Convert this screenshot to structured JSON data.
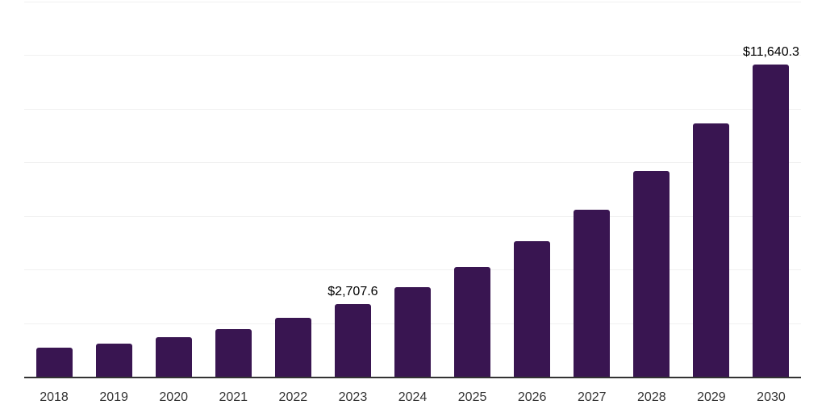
{
  "chart": {
    "bar_color": "#391551",
    "axis_line_color": "#333333",
    "gridline_color": "#f0f0f0",
    "tick_label_color": "#333333",
    "value_label_color": "#000000"
  },
  "chart_data": {
    "type": "bar",
    "title": "",
    "xlabel": "",
    "ylabel": "",
    "categories": [
      "2018",
      "2019",
      "2020",
      "2021",
      "2022",
      "2023",
      "2024",
      "2025",
      "2026",
      "2027",
      "2028",
      "2029",
      "2030"
    ],
    "values": [
      1080,
      1230,
      1480,
      1785,
      2185,
      2707.6,
      3334.9,
      4107.7,
      5059.5,
      6231.7,
      7675.5,
      9454.0,
      11640.3
    ],
    "value_labels": [
      "",
      "",
      "",
      "",
      "",
      "$2,707.6",
      "",
      "",
      "",
      "",
      "",
      "",
      "$11,640.3"
    ],
    "ylim": [
      0,
      14000
    ],
    "gridline_step": 2000,
    "grid": "horizontal",
    "legend_position": "none"
  }
}
